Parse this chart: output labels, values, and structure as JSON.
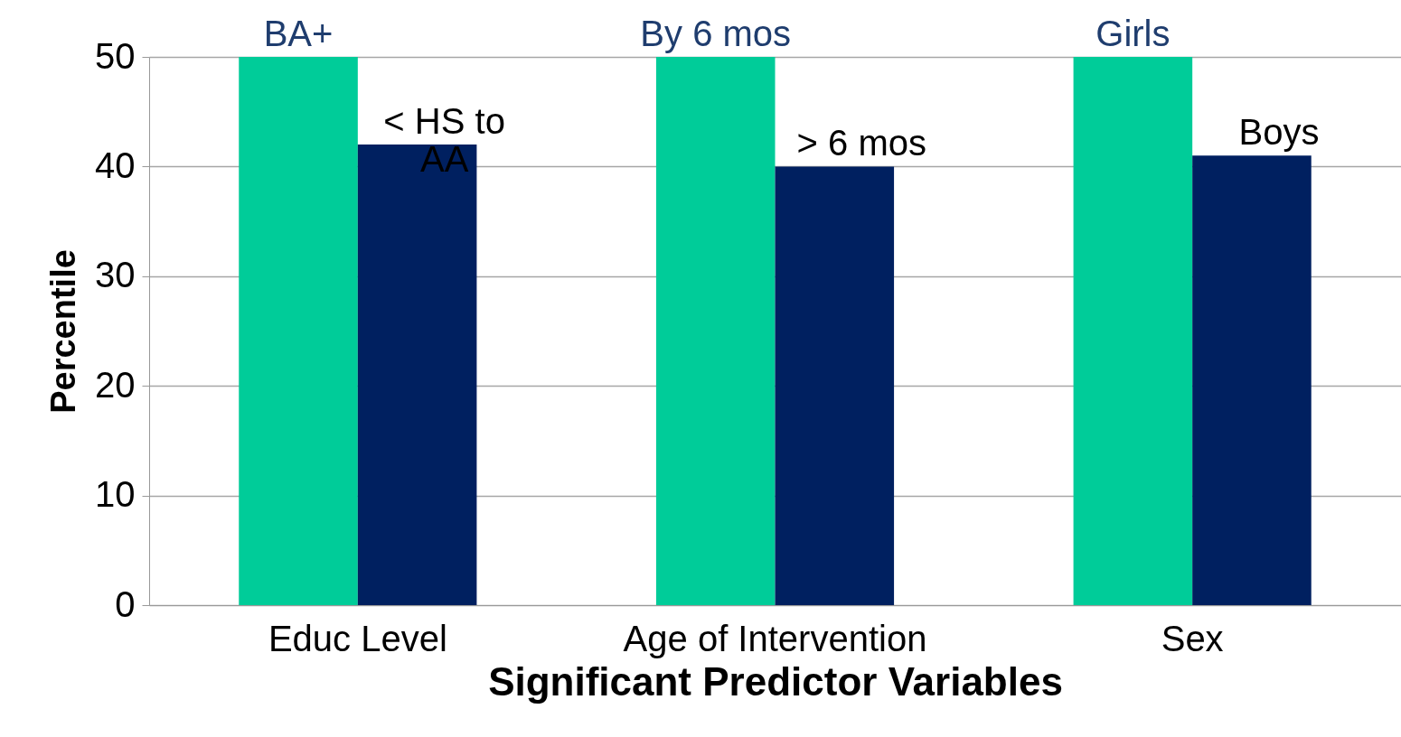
{
  "chart_data": {
    "type": "bar",
    "xlabel": "Significant Predictor Variables",
    "ylabel": "Percentile",
    "categories": [
      "Educ Level",
      "Age of Intervention",
      "Sex"
    ],
    "series": [
      {
        "color": "#00cc99",
        "values": [
          50,
          50,
          50
        ]
      },
      {
        "color": "#002060",
        "values": [
          42,
          40,
          41
        ]
      }
    ],
    "ylim": [
      0,
      50
    ],
    "yticks": [
      0,
      10,
      20,
      30,
      40,
      50
    ],
    "grid": "y",
    "legend": false,
    "annotations": [
      {
        "text": "BA+",
        "x": "Educ Level",
        "y": 50
      },
      {
        "text": "< HS to AA",
        "x": "Educ Level",
        "y": 42
      },
      {
        "text": "By 6 mos",
        "x": "Age of Intervention",
        "y": 50
      },
      {
        "text": "> 6 mos",
        "x": "Age of Intervention",
        "y": 40
      },
      {
        "text": "Girls",
        "x": "Sex",
        "y": 50
      },
      {
        "text": "Boys",
        "x": "Sex",
        "y": 41
      }
    ]
  }
}
